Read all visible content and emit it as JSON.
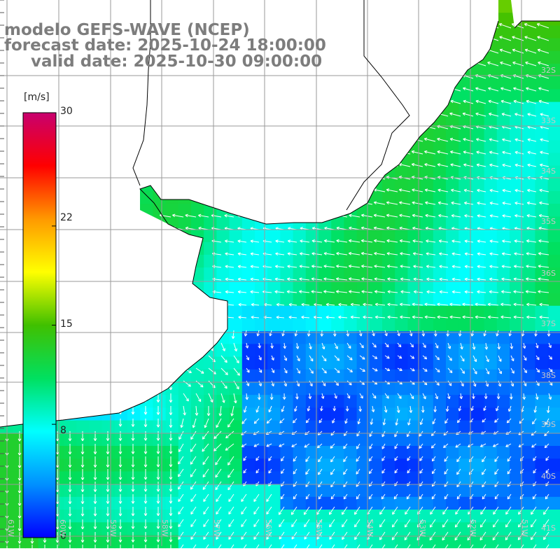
{
  "titles": {
    "model": "modelo GEFS-WAVE (NCEP)",
    "forecast": "forecast date: 2025-10-24 18:00:00",
    "valid": "valid date: 2025-10-30 09:00:00"
  },
  "colorbar": {
    "unit": "[m/s]",
    "ticks": [
      "30",
      "22",
      "15",
      "8",
      "0"
    ],
    "tick_values": [
      30,
      22,
      15,
      8,
      0
    ],
    "range": [
      0,
      30
    ],
    "colors": [
      "#0000ff",
      "#0090ff",
      "#00ffff",
      "#00e060",
      "#40c000",
      "#ffff00",
      "#ff9900",
      "#ff0000",
      "#c8006e"
    ]
  },
  "map": {
    "type": "wind field (color = speed, arrows = direction)",
    "land_color": "#ffffff",
    "grid_color": "#9a9a9a",
    "coast_color": "#000000",
    "arrow_color": "#ffffff",
    "lat_labels": [
      "32S",
      "33S",
      "34S",
      "35S",
      "36S",
      "37S",
      "38S",
      "39S",
      "40S",
      "41S"
    ],
    "lon_labels": [
      "61W",
      "60W",
      "59W",
      "58W",
      "57W",
      "56W",
      "55W",
      "54W",
      "53W",
      "52W",
      "51W"
    ]
  }
}
